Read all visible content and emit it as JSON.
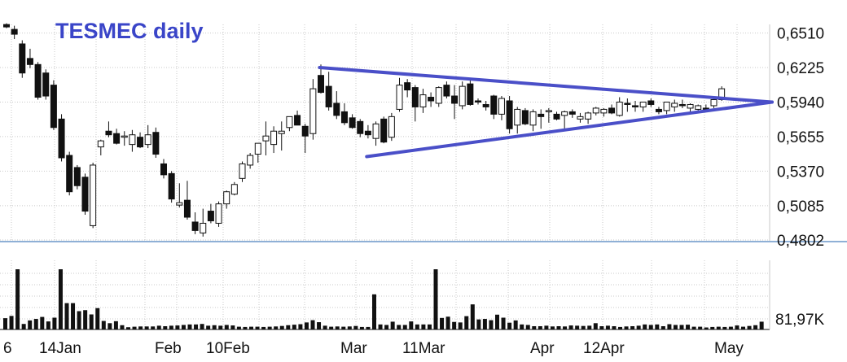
{
  "chart_data": [
    {
      "type": "candlestick",
      "title": "TESMEC daily",
      "y_ticks": [
        "0,6510",
        "0,6225",
        "0,5940",
        "0,5655",
        "0,5370",
        "0,5085",
        "0,4802"
      ],
      "y_tick_values": [
        0.651,
        0.6225,
        0.594,
        0.5655,
        0.537,
        0.5085,
        0.4802
      ],
      "ylim": [
        0.4802,
        0.6581
      ],
      "x_labels": [
        "6",
        "14Jan",
        "Feb",
        "10Feb",
        "Mar",
        "11Mar",
        "Apr",
        "12Apr",
        "May"
      ],
      "grid": true,
      "candles": [
        [
          0.658,
          0.659,
          0.655,
          0.656
        ],
        [
          0.654,
          0.657,
          0.646,
          0.65
        ],
        [
          0.642,
          0.645,
          0.614,
          0.618
        ],
        [
          0.63,
          0.638,
          0.622,
          0.625
        ],
        [
          0.625,
          0.627,
          0.596,
          0.598
        ],
        [
          0.618,
          0.621,
          0.596,
          0.599
        ],
        [
          0.608,
          0.612,
          0.571,
          0.573
        ],
        [
          0.58,
          0.584,
          0.545,
          0.548
        ],
        [
          0.55,
          0.553,
          0.517,
          0.52
        ],
        [
          0.54,
          0.542,
          0.522,
          0.525
        ],
        [
          0.532,
          0.535,
          0.501,
          0.504
        ],
        [
          0.492,
          0.544,
          0.49,
          0.542
        ],
        [
          0.557,
          0.563,
          0.55,
          0.562
        ],
        [
          0.57,
          0.578,
          0.565,
          0.567
        ],
        [
          0.568,
          0.572,
          0.559,
          0.56
        ],
        [
          0.565,
          0.57,
          0.558,
          0.566
        ],
        [
          0.559,
          0.571,
          0.553,
          0.567
        ],
        [
          0.565,
          0.569,
          0.556,
          0.557
        ],
        [
          0.559,
          0.575,
          0.556,
          0.567
        ],
        [
          0.569,
          0.573,
          0.548,
          0.551
        ],
        [
          0.543,
          0.547,
          0.531,
          0.534
        ],
        [
          0.535,
          0.537,
          0.511,
          0.514
        ],
        [
          0.509,
          0.527,
          0.507,
          0.511
        ],
        [
          0.513,
          0.529,
          0.497,
          0.499
        ],
        [
          0.495,
          0.503,
          0.485,
          0.488
        ],
        [
          0.486,
          0.506,
          0.483,
          0.494
        ],
        [
          0.504,
          0.51,
          0.494,
          0.496
        ],
        [
          0.494,
          0.512,
          0.491,
          0.51
        ],
        [
          0.51,
          0.521,
          0.506,
          0.52
        ],
        [
          0.518,
          0.528,
          0.517,
          0.526
        ],
        [
          0.531,
          0.545,
          0.528,
          0.543
        ],
        [
          0.542,
          0.552,
          0.539,
          0.55
        ],
        [
          0.551,
          0.56,
          0.544,
          0.56
        ],
        [
          0.562,
          0.578,
          0.55,
          0.566
        ],
        [
          0.559,
          0.574,
          0.552,
          0.57
        ],
        [
          0.568,
          0.578,
          0.554,
          0.57
        ],
        [
          0.573,
          0.582,
          0.57,
          0.582
        ],
        [
          0.583,
          0.587,
          0.575,
          0.575
        ],
        [
          0.574,
          0.576,
          0.552,
          0.566
        ],
        [
          0.568,
          0.613,
          0.563,
          0.605
        ],
        [
          0.616,
          0.625,
          0.601,
          0.602
        ],
        [
          0.607,
          0.619,
          0.587,
          0.59
        ],
        [
          0.593,
          0.603,
          0.58,
          0.583
        ],
        [
          0.586,
          0.593,
          0.575,
          0.577
        ],
        [
          0.581,
          0.584,
          0.572,
          0.573
        ],
        [
          0.578,
          0.58,
          0.565,
          0.568
        ],
        [
          0.57,
          0.575,
          0.564,
          0.567
        ],
        [
          0.564,
          0.578,
          0.558,
          0.576
        ],
        [
          0.58,
          0.582,
          0.56,
          0.561
        ],
        [
          0.565,
          0.585,
          0.562,
          0.582
        ],
        [
          0.588,
          0.614,
          0.586,
          0.608
        ],
        [
          0.61,
          0.613,
          0.598,
          0.604
        ],
        [
          0.606,
          0.608,
          0.578,
          0.59
        ],
        [
          0.59,
          0.605,
          0.585,
          0.6
        ],
        [
          0.598,
          0.602,
          0.59,
          0.595
        ],
        [
          0.593,
          0.607,
          0.59,
          0.606
        ],
        [
          0.608,
          0.611,
          0.597,
          0.599
        ],
        [
          0.599,
          0.608,
          0.58,
          0.593
        ],
        [
          0.591,
          0.611,
          0.588,
          0.607
        ],
        [
          0.609,
          0.612,
          0.591,
          0.592
        ],
        [
          0.595,
          0.597,
          0.592,
          0.594
        ],
        [
          0.592,
          0.595,
          0.587,
          0.59
        ],
        [
          0.599,
          0.6,
          0.58,
          0.584
        ],
        [
          0.584,
          0.599,
          0.579,
          0.597
        ],
        [
          0.595,
          0.599,
          0.568,
          0.572
        ],
        [
          0.575,
          0.59,
          0.568,
          0.588
        ],
        [
          0.587,
          0.589,
          0.575,
          0.576
        ],
        [
          0.575,
          0.588,
          0.57,
          0.586
        ],
        [
          0.584,
          0.588,
          0.572,
          0.582
        ],
        [
          0.586,
          0.589,
          0.577,
          0.587
        ],
        [
          0.584,
          0.586,
          0.579,
          0.58
        ],
        [
          0.583,
          0.587,
          0.572,
          0.586
        ],
        [
          0.586,
          0.588,
          0.581,
          0.584
        ],
        [
          0.58,
          0.585,
          0.577,
          0.582
        ],
        [
          0.58,
          0.586,
          0.576,
          0.585
        ],
        [
          0.585,
          0.59,
          0.583,
          0.589
        ],
        [
          0.585,
          0.589,
          0.582,
          0.588
        ],
        [
          0.589,
          0.592,
          0.584,
          0.585
        ],
        [
          0.583,
          0.598,
          0.582,
          0.594
        ],
        [
          0.593,
          0.597,
          0.586,
          0.592
        ],
        [
          0.591,
          0.595,
          0.586,
          0.59
        ],
        [
          0.59,
          0.594,
          0.586,
          0.594
        ],
        [
          0.595,
          0.597,
          0.59,
          0.592
        ],
        [
          0.588,
          0.59,
          0.584,
          0.586
        ],
        [
          0.587,
          0.594,
          0.584,
          0.594
        ],
        [
          0.59,
          0.596,
          0.586,
          0.593
        ],
        [
          0.592,
          0.596,
          0.589,
          0.591
        ],
        [
          0.589,
          0.593,
          0.586,
          0.592
        ],
        [
          0.588,
          0.592,
          0.585,
          0.591
        ],
        [
          0.589,
          0.592,
          0.587,
          0.588
        ],
        [
          0.591,
          0.597,
          0.589,
          0.596
        ],
        [
          0.596,
          0.607,
          0.595,
          0.605
        ]
      ],
      "trendlines": [
        {
          "points": [
            [
              39,
              0.6225
            ],
            [
              95,
              0.594
            ]
          ],
          "color": "#4a4fc8"
        },
        {
          "points": [
            [
              45,
              0.549
            ],
            [
              95,
              0.594
            ]
          ],
          "color": "#4a4fc8"
        }
      ]
    },
    {
      "type": "bar",
      "ylabel_value": "81,97K",
      "values": [
        45,
        54,
        240,
        22,
        36,
        42,
        50,
        32,
        47,
        240,
        105,
        105,
        73,
        77,
        60,
        85,
        34,
        25,
        33,
        17,
        9,
        11,
        12,
        12,
        12,
        15,
        13,
        15,
        16,
        18,
        20,
        20,
        22,
        15,
        17,
        15,
        18,
        16,
        11,
        10,
        11,
        11,
        10,
        11,
        12,
        14,
        17,
        19,
        21,
        28,
        37,
        29,
        15,
        11,
        12,
        11,
        12,
        14,
        10,
        10,
        140,
        20,
        18,
        31,
        18,
        18,
        32,
        20,
        20,
        20,
        240,
        46,
        51,
        30,
        28,
        53,
        100,
        40,
        42,
        37,
        59,
        47,
        27,
        36,
        20,
        18,
        13,
        13,
        15,
        12,
        13,
        12,
        16,
        15,
        14,
        15,
        25,
        13,
        15,
        13,
        10,
        12,
        13,
        15,
        20,
        18,
        20,
        13,
        21,
        18,
        18,
        19,
        11,
        11,
        8,
        10,
        11,
        10,
        11,
        16,
        11,
        14,
        17,
        31
      ],
      "values_unit": "percent-of-panel"
    }
  ]
}
